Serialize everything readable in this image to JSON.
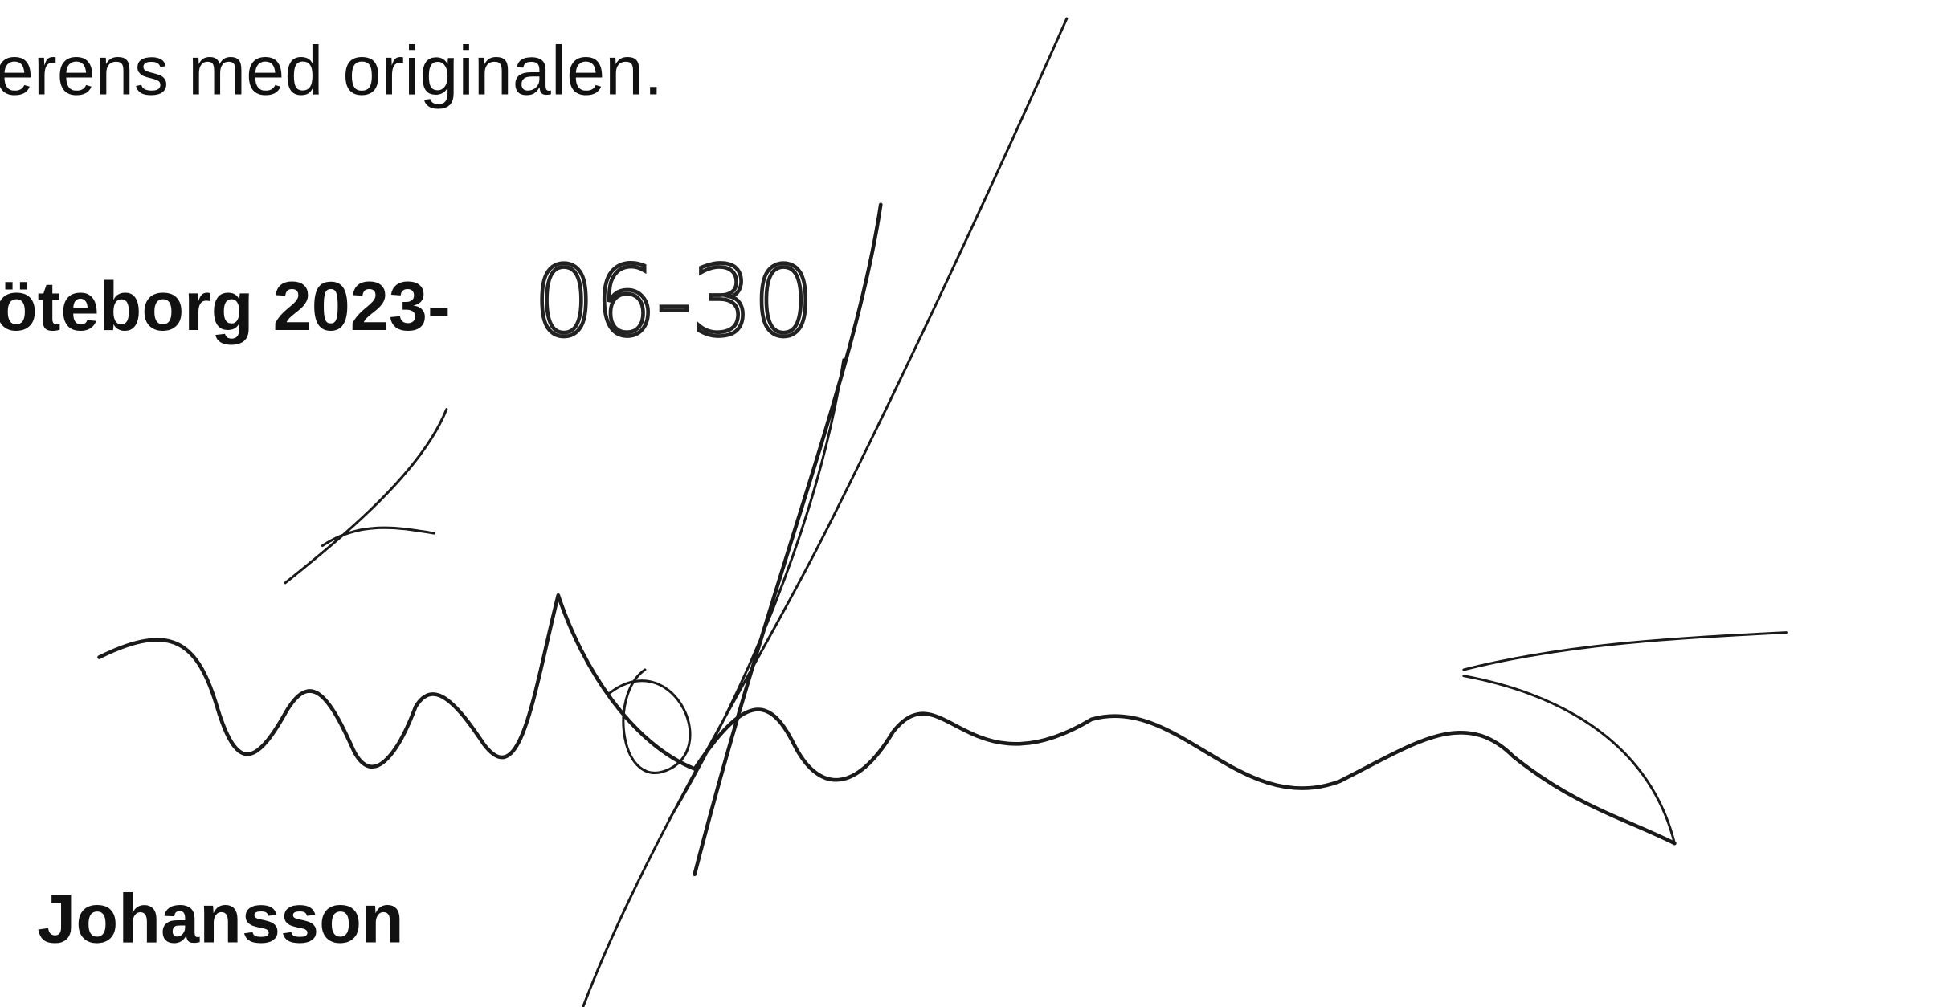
{
  "document": {
    "lines": [
      "erens med originalen.",
      "öteborg 2023-"
    ],
    "handwritten_date": "06-30",
    "signatory": "Johansson"
  }
}
